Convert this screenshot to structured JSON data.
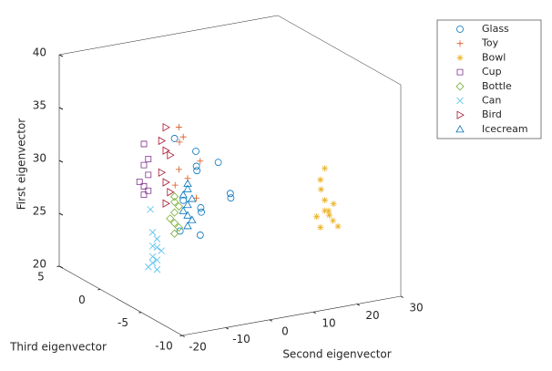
{
  "chart_data": {
    "type": "scatter3",
    "xlabel": "Second eigenvector",
    "ylabel": "Third eigenvector",
    "zlabel": "First eigenvector",
    "xlim": [
      -20,
      30
    ],
    "xticks": [
      -20,
      -10,
      0,
      10,
      20,
      30
    ],
    "ylim": [
      -10,
      5
    ],
    "yticks": [
      -10,
      -5,
      0,
      5
    ],
    "zlim": [
      20,
      40
    ],
    "zticks": [
      20,
      25,
      30,
      35,
      40
    ],
    "legend": "northeast",
    "series": [
      {
        "name": "Glass",
        "marker": "o",
        "color": "#0072BD",
        "x": [
          -3,
          0,
          2,
          4,
          6,
          -1,
          3,
          5,
          1,
          7,
          2,
          8
        ],
        "y": [
          0,
          -1,
          0,
          1,
          -2,
          0,
          0,
          1,
          -1,
          0,
          2,
          -1
        ],
        "z": [
          33,
          32,
          30,
          29,
          28,
          27,
          26,
          25,
          24,
          30,
          23,
          27
        ]
      },
      {
        "name": "Toy",
        "marker": "+",
        "color": "#D95319",
        "x": [
          -2,
          -1,
          0,
          1,
          -2,
          0,
          -1,
          2
        ],
        "y": [
          0,
          0,
          1,
          -1,
          0,
          0,
          1,
          0
        ],
        "z": [
          34,
          33,
          32,
          31,
          30,
          29,
          28,
          27
        ]
      },
      {
        "name": "Bowl",
        "marker": "*",
        "color": "#EDB120",
        "x": [
          22,
          21,
          23,
          22,
          21,
          24,
          22,
          23,
          22,
          21,
          25,
          22
        ],
        "y": [
          -5,
          -5,
          -4,
          -5,
          -6,
          -5,
          -5,
          -5,
          -4,
          -5,
          -5,
          -6
        ],
        "z": [
          30.5,
          29.5,
          28,
          27.5,
          27,
          27,
          26.5,
          26,
          25.5,
          25,
          24.8,
          26
        ]
      },
      {
        "name": "Cup",
        "marker": "s",
        "color": "#7E2F8E",
        "x": [
          -10,
          -9,
          -10,
          -9,
          -11,
          -10,
          -9,
          -10
        ],
        "y": [
          0,
          0,
          0,
          0,
          0,
          0,
          0,
          0
        ],
        "z": [
          33,
          31.5,
          31,
          30,
          29.5,
          29,
          28.5,
          28.2
        ]
      },
      {
        "name": "Bottle",
        "marker": "d",
        "color": "#77AC30",
        "x": [
          -3,
          -3,
          -2,
          -3,
          -4,
          -3,
          -2,
          -3
        ],
        "y": [
          0,
          0,
          0,
          0,
          0,
          0,
          0,
          0
        ],
        "z": [
          27.5,
          27,
          26.5,
          26,
          25.5,
          25,
          24.5,
          24
        ]
      },
      {
        "name": "Can",
        "marker": "x",
        "color": "#4DBEEE",
        "x": [
          -8,
          -7,
          -8,
          -7,
          -6,
          -8,
          -7,
          -9,
          -7,
          -8,
          -8.5
        ],
        "y": [
          0,
          0,
          0,
          0,
          0,
          0,
          0,
          0,
          0,
          0,
          0
        ],
        "z": [
          24.5,
          23.8,
          23.2,
          23,
          22.6,
          22.2,
          21.8,
          21.3,
          20.9,
          21.6,
          26.7
        ]
      },
      {
        "name": "Bird",
        "marker": ">",
        "color": "#A2142F",
        "x": [
          -5,
          -6,
          -5,
          -4,
          -6,
          -5,
          -4,
          -5
        ],
        "y": [
          0,
          0,
          0,
          0,
          0,
          0,
          0,
          0
        ],
        "z": [
          34.2,
          33,
          32,
          31.5,
          30,
          29,
          28,
          27
        ]
      },
      {
        "name": "Icecream",
        "marker": "^",
        "color": "#0072BD",
        "x": [
          0,
          0,
          -1,
          1,
          0,
          -1,
          0,
          1,
          0
        ],
        "y": [
          0,
          0,
          0,
          0,
          0,
          0,
          0,
          0,
          0
        ],
        "z": [
          28.5,
          28,
          27.5,
          27,
          26.5,
          26,
          25.5,
          25,
          24.5
        ]
      }
    ]
  }
}
